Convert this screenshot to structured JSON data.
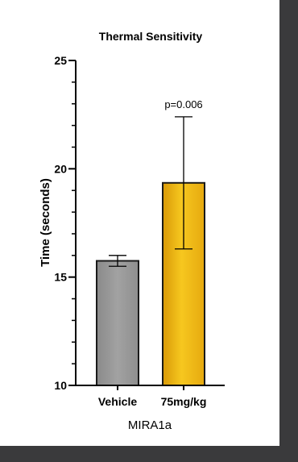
{
  "chart_data": {
    "type": "bar",
    "title": "Thermal Sensitivity",
    "xlabel": "MIRA1a",
    "ylabel": "Time (seconds)",
    "categories": [
      "Vehicle",
      "75mg/kg"
    ],
    "values": [
      15.75,
      19.35
    ],
    "errors": [
      0.25,
      3.05
    ],
    "ylim": [
      10,
      25
    ],
    "yticks": [
      10,
      15,
      20,
      25
    ],
    "minor_tick_step": 1,
    "annotations": [
      {
        "category": "75mg/kg",
        "text": "p=0.006"
      }
    ],
    "colors": [
      "#9a9a9a",
      "#f2bf1d"
    ],
    "grid": false,
    "legend": "none"
  }
}
